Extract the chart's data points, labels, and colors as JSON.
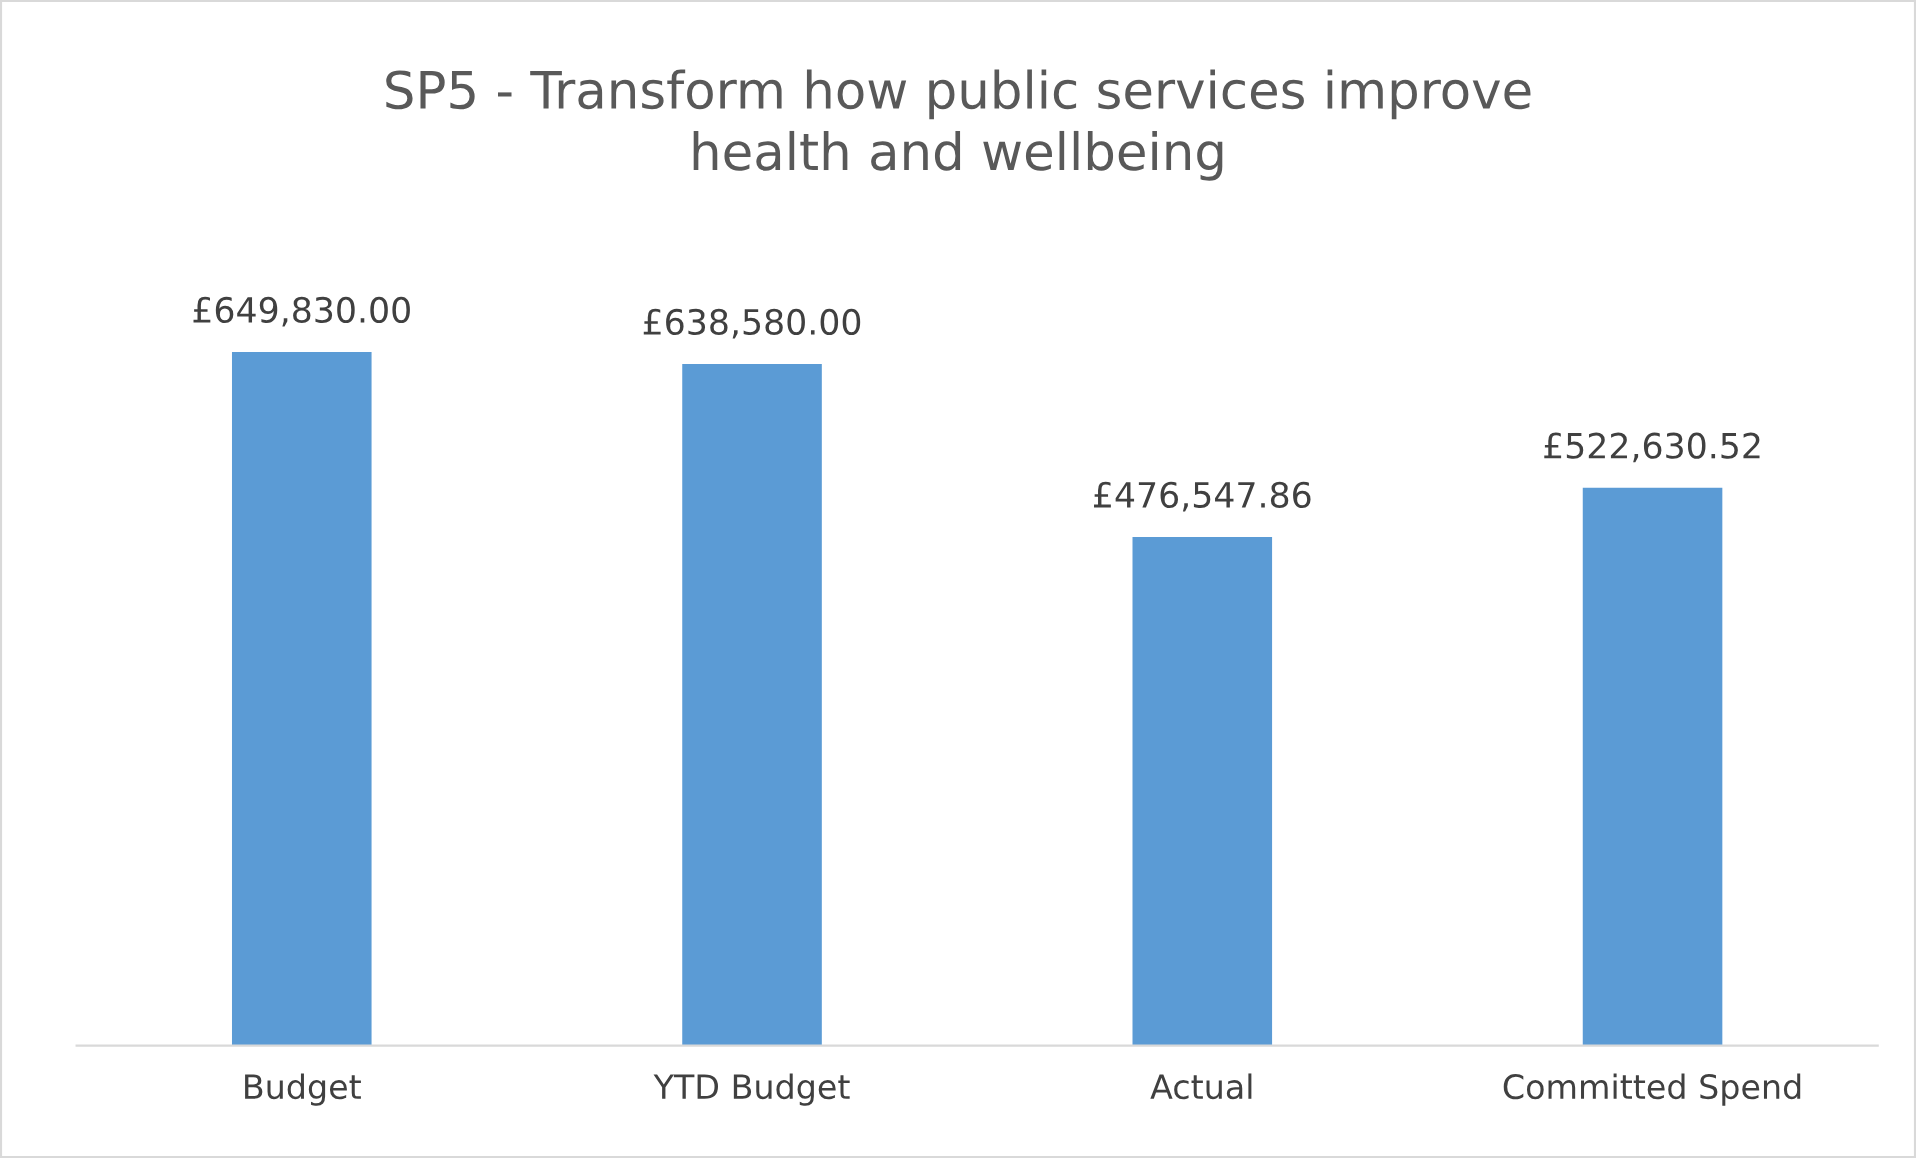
{
  "chart_data": {
    "type": "bar",
    "title": "SP5 - Transform how public services improve\nhealth and wellbeing",
    "categories": [
      "Budget",
      "YTD Budget",
      "Actual",
      "Committed Spend"
    ],
    "values": [
      649830.0,
      638580.0,
      476547.86,
      522630.52
    ],
    "value_labels": [
      "£649,830.00",
      "£638,580.00",
      "£476,547.86",
      "£522,630.52"
    ],
    "color": "#5b9bd5"
  }
}
